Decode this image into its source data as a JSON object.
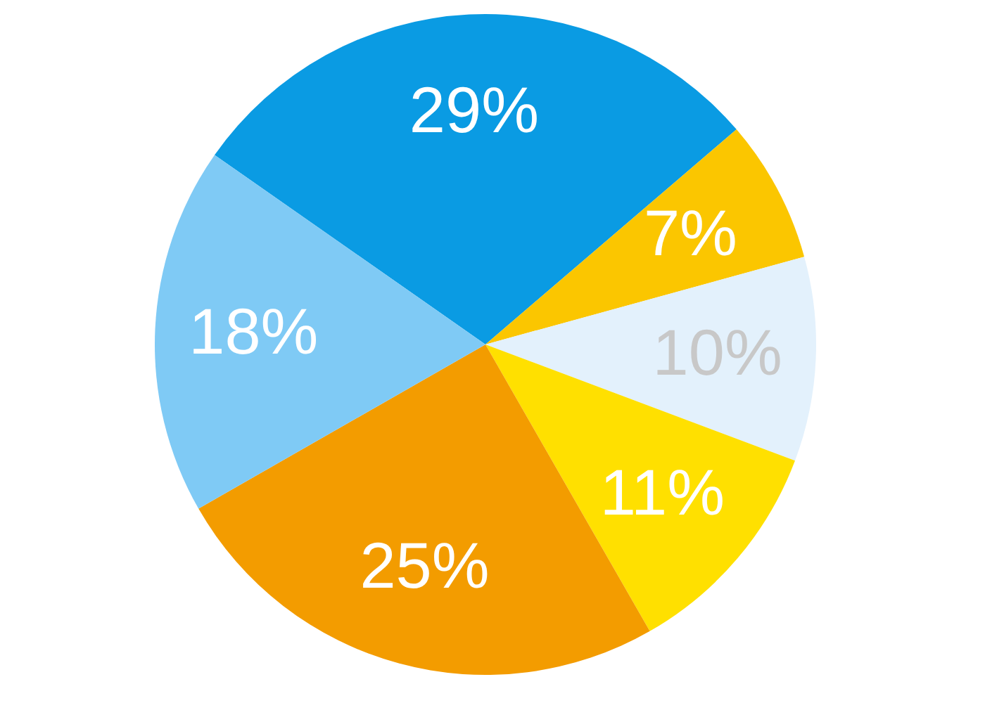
{
  "chart_data": {
    "type": "pie",
    "categories": [
      null,
      null,
      null,
      null,
      null,
      null
    ],
    "values": [
      29,
      7,
      10,
      11,
      25,
      18
    ],
    "colors": [
      "#0a9be3",
      "#fbc600",
      "#e3f1fc",
      "#ffe000",
      "#f39c00",
      "#7fcaf5"
    ],
    "value_labels": [
      "29%",
      "7%",
      "10%",
      "11%",
      "25%",
      "18%"
    ],
    "legend": false
  }
}
